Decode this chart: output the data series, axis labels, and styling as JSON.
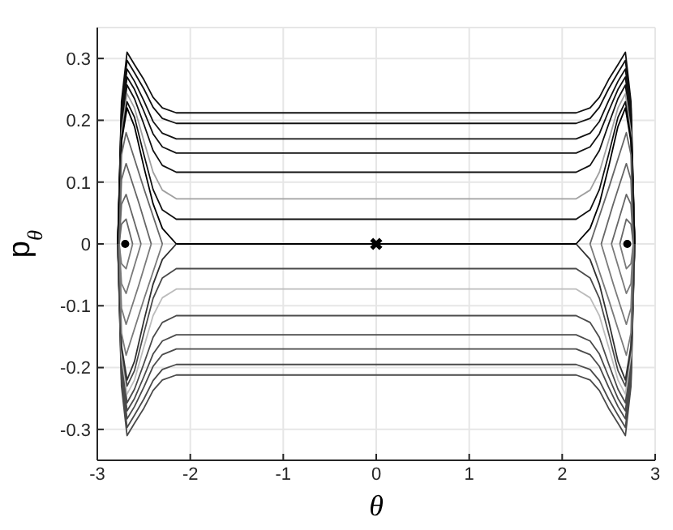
{
  "chart_data": {
    "type": "line",
    "xlabel": "θ",
    "ylabel": "p$_{θ}$",
    "xlim": [
      -3,
      3
    ],
    "xticks": [
      -3,
      -2,
      -1,
      0,
      1,
      2,
      3
    ],
    "ylim": [
      -0.35,
      0.35
    ],
    "yticks": [
      -0.3,
      -0.2,
      -0.1,
      0,
      0.1,
      0.2,
      0.3
    ],
    "grid": true,
    "marker": "none",
    "line_style": "solid",
    "x": [
      -2.78,
      -2.74,
      -2.68,
      -2.6,
      -2.5,
      -2.4,
      -2.3,
      -2.15,
      2.15,
      2.3,
      2.4,
      2.5,
      2.6,
      2.68,
      2.74,
      2.78
    ],
    "series": [
      {
        "color": "#111111",
        "values": [
          0,
          0.23,
          0.31,
          0.29,
          0.266,
          0.237,
          0.22,
          0.212,
          0.212,
          0.22,
          0.237,
          0.266,
          0.29,
          0.31,
          0.23,
          0
        ]
      },
      {
        "color": "#4a4a4a",
        "values": [
          0,
          -0.23,
          -0.31,
          -0.29,
          -0.266,
          -0.237,
          -0.22,
          -0.212,
          -0.212,
          -0.22,
          -0.237,
          -0.266,
          -0.29,
          -0.31,
          -0.23,
          0
        ]
      },
      {
        "color": "#111111",
        "values": [
          0,
          0.22,
          0.297,
          0.277,
          0.251,
          0.221,
          0.203,
          0.195,
          0.195,
          0.203,
          0.221,
          0.251,
          0.277,
          0.297,
          0.22,
          0
        ]
      },
      {
        "color": "#4a4a4a",
        "values": [
          0,
          -0.22,
          -0.297,
          -0.277,
          -0.251,
          -0.221,
          -0.203,
          -0.195,
          -0.195,
          -0.203,
          -0.221,
          -0.251,
          -0.277,
          -0.297,
          -0.22,
          0
        ]
      },
      {
        "color": "#111111",
        "values": [
          0,
          0.21,
          0.283,
          0.263,
          0.232,
          0.198,
          0.179,
          0.17,
          0.17,
          0.179,
          0.198,
          0.232,
          0.263,
          0.283,
          0.21,
          0
        ]
      },
      {
        "color": "#4a4a4a",
        "values": [
          0,
          -0.21,
          -0.283,
          -0.263,
          -0.232,
          -0.198,
          -0.179,
          -0.17,
          -0.17,
          -0.179,
          -0.198,
          -0.232,
          -0.263,
          -0.283,
          -0.21,
          0
        ]
      },
      {
        "color": "#111111",
        "values": [
          0,
          0.2,
          0.27,
          0.25,
          0.215,
          0.178,
          0.157,
          0.147,
          0.147,
          0.157,
          0.178,
          0.215,
          0.25,
          0.27,
          0.2,
          0
        ]
      },
      {
        "color": "#4a4a4a",
        "values": [
          0,
          -0.2,
          -0.27,
          -0.25,
          -0.215,
          -0.178,
          -0.157,
          -0.147,
          -0.147,
          -0.157,
          -0.178,
          -0.215,
          -0.25,
          -0.27,
          -0.2,
          0
        ]
      },
      {
        "color": "#111111",
        "values": [
          0,
          0.19,
          0.257,
          0.235,
          0.194,
          0.151,
          0.127,
          0.116,
          0.116,
          0.127,
          0.151,
          0.194,
          0.235,
          0.257,
          0.19,
          0
        ]
      },
      {
        "color": "#4a4a4a",
        "values": [
          0,
          -0.19,
          -0.257,
          -0.235,
          -0.194,
          -0.151,
          -0.127,
          -0.116,
          -0.116,
          -0.127,
          -0.151,
          -0.194,
          -0.235,
          -0.257,
          -0.19,
          0
        ]
      },
      {
        "color": "#a0a0a0",
        "values": [
          0,
          0.18,
          0.243,
          0.22,
          0.167,
          0.116,
          0.087,
          0.073,
          0.073,
          0.087,
          0.116,
          0.167,
          0.22,
          0.243,
          0.18,
          0
        ]
      },
      {
        "color": "#bcbcbc",
        "values": [
          0,
          -0.18,
          -0.243,
          -0.22,
          -0.167,
          -0.116,
          -0.087,
          -0.073,
          -0.073,
          -0.087,
          -0.116,
          -0.167,
          -0.22,
          -0.243,
          -0.18,
          0
        ]
      },
      {
        "color": "#111111",
        "values": [
          0,
          0.17,
          0.23,
          0.205,
          0.145,
          0.088,
          0.055,
          0.04,
          0.04,
          0.055,
          0.088,
          0.145,
          0.205,
          0.23,
          0.17,
          0
        ]
      },
      {
        "color": "#4a4a4a",
        "values": [
          0,
          -0.17,
          -0.23,
          -0.205,
          -0.145,
          -0.088,
          -0.055,
          -0.04,
          -0.04,
          -0.055,
          -0.088,
          -0.145,
          -0.205,
          -0.23,
          -0.17,
          0
        ]
      },
      {
        "color": "#000000",
        "values": [
          0,
          0.165,
          0.22,
          0.19,
          0.125,
          0.065,
          0.025,
          0,
          0,
          0.025,
          0.065,
          0.125,
          0.19,
          0.22,
          0.165,
          0
        ]
      },
      {
        "color": "#303030",
        "x": [
          -2.78,
          -2.74,
          -2.68,
          -2.6,
          -2.5,
          -2.4,
          -2.3,
          -2.15
        ],
        "values": [
          0,
          -0.165,
          -0.22,
          -0.19,
          -0.125,
          -0.065,
          -0.025,
          0
        ]
      },
      {
        "color": "#303030",
        "x": [
          2.15,
          2.3,
          2.4,
          2.5,
          2.6,
          2.68,
          2.74,
          2.78
        ],
        "values": [
          0,
          -0.025,
          -0.065,
          -0.125,
          -0.19,
          -0.22,
          -0.165,
          0
        ]
      },
      {
        "color": "#666666",
        "x": [
          -2.765,
          -2.74,
          -2.69,
          -2.5,
          -2.3
        ],
        "values": [
          0,
          0.144,
          0.18,
          0.09,
          0
        ]
      },
      {
        "color": "#7a7a7a",
        "x": [
          -2.765,
          -2.74,
          -2.69,
          -2.5,
          -2.3
        ],
        "values": [
          0,
          -0.144,
          -0.18,
          -0.09,
          0
        ]
      },
      {
        "color": "#666666",
        "x": [
          -2.765,
          -2.74,
          -2.69,
          -2.55,
          -2.42
        ],
        "values": [
          0,
          0.104,
          0.13,
          0.065,
          0
        ]
      },
      {
        "color": "#7a7a7a",
        "x": [
          -2.765,
          -2.74,
          -2.69,
          -2.55,
          -2.42
        ],
        "values": [
          0,
          -0.104,
          -0.13,
          -0.065,
          0
        ]
      },
      {
        "color": "#666666",
        "x": [
          -2.765,
          -2.74,
          -2.69,
          -2.61,
          -2.53
        ],
        "values": [
          0,
          0.064,
          0.08,
          0.04,
          0
        ]
      },
      {
        "color": "#7a7a7a",
        "x": [
          -2.765,
          -2.74,
          -2.69,
          -2.61,
          -2.53
        ],
        "values": [
          0,
          -0.064,
          -0.08,
          -0.04,
          0
        ]
      },
      {
        "color": "#666666",
        "x": [
          -2.765,
          -2.74,
          -2.69,
          -2.655,
          -2.62
        ],
        "values": [
          0,
          0.032,
          0.04,
          0.02,
          0
        ]
      },
      {
        "color": "#7a7a7a",
        "x": [
          -2.765,
          -2.74,
          -2.69,
          -2.655,
          -2.62
        ],
        "values": [
          0,
          -0.032,
          -0.04,
          -0.02,
          0
        ]
      },
      {
        "color": "#666666",
        "x": [
          2.3,
          2.5,
          2.69,
          2.74,
          2.765
        ],
        "values": [
          0,
          0.09,
          0.18,
          0.144,
          0
        ]
      },
      {
        "color": "#7a7a7a",
        "x": [
          2.3,
          2.5,
          2.69,
          2.74,
          2.765
        ],
        "values": [
          0,
          -0.09,
          -0.18,
          -0.144,
          0
        ]
      },
      {
        "color": "#666666",
        "x": [
          2.42,
          2.55,
          2.69,
          2.74,
          2.765
        ],
        "values": [
          0,
          0.065,
          0.13,
          0.104,
          0
        ]
      },
      {
        "color": "#7a7a7a",
        "x": [
          2.42,
          2.55,
          2.69,
          2.74,
          2.765
        ],
        "values": [
          0,
          -0.065,
          -0.13,
          -0.104,
          0
        ]
      },
      {
        "color": "#666666",
        "x": [
          2.53,
          2.61,
          2.69,
          2.74,
          2.765
        ],
        "values": [
          0,
          0.04,
          0.08,
          0.064,
          0
        ]
      },
      {
        "color": "#7a7a7a",
        "x": [
          2.53,
          2.61,
          2.69,
          2.74,
          2.765
        ],
        "values": [
          0,
          -0.04,
          -0.08,
          -0.064,
          0
        ]
      },
      {
        "color": "#666666",
        "x": [
          2.62,
          2.655,
          2.69,
          2.74,
          2.765
        ],
        "values": [
          0,
          0.02,
          0.04,
          0.032,
          0
        ]
      },
      {
        "color": "#7a7a7a",
        "x": [
          2.62,
          2.655,
          2.69,
          2.74,
          2.765
        ],
        "values": [
          0,
          -0.02,
          -0.04,
          -0.032,
          0
        ]
      },
      {
        "type": "scatter",
        "marker": "circle",
        "color": "#000000",
        "x": [
          -2.7,
          2.7
        ],
        "values": [
          0,
          0
        ]
      },
      {
        "type": "scatter",
        "marker": "cross",
        "color": "#000000",
        "x": [
          0
        ],
        "values": [
          0
        ]
      }
    ]
  }
}
